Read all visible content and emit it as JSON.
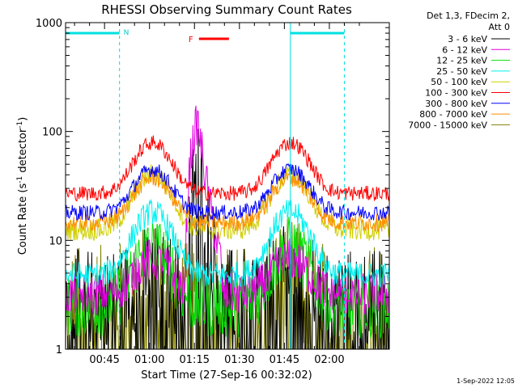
{
  "chart_data": {
    "type": "line",
    "title": "RHESSI Observing Summary Count Rates",
    "xlabel": "Start Time (27-Sep-16 00:32:02)",
    "ylabel_prefix": "Count Rate (s",
    "ylabel_sup1": "-1",
    "ylabel_mid": " detector",
    "ylabel_sup2": "-1",
    "ylabel_suffix": ")",
    "yscale": "log",
    "ylim": [
      1,
      1000
    ],
    "xlim_minutes": [
      32.0,
      140.0
    ],
    "x_ticks": [
      {
        "minute": 45,
        "label": "00:45"
      },
      {
        "minute": 60,
        "label": "01:00"
      },
      {
        "minute": 75,
        "label": "01:15"
      },
      {
        "minute": 90,
        "label": "01:30"
      },
      {
        "minute": 105,
        "label": "01:45"
      },
      {
        "minute": 120,
        "label": "02:00"
      }
    ],
    "y_ticks": [
      {
        "value": 1,
        "label": "1"
      },
      {
        "value": 10,
        "label": "10"
      },
      {
        "value": 100,
        "label": "100"
      },
      {
        "value": 1000,
        "label": "1000"
      }
    ],
    "legend_header": [
      "Det 1,3, FDecim 2,",
      "Att 0"
    ],
    "legend_placement": "right",
    "series": [
      {
        "name": "3 - 6 keV",
        "color": "#000000",
        "base": 3.0,
        "peak": 2.0,
        "noise": 0.45
      },
      {
        "name": "6 - 12 keV",
        "color": "#e000e0",
        "base": 3.2,
        "peak": 3.5,
        "noise": 0.2
      },
      {
        "name": "12 - 25 keV",
        "color": "#00e000",
        "base": 2.5,
        "peak": 6.0,
        "noise": 0.3
      },
      {
        "name": "25 - 50 keV",
        "color": "#00f0f0",
        "base": 4.8,
        "peak": 13.5,
        "noise": 0.12
      },
      {
        "name": "50 - 100 keV",
        "color": "#d0d000",
        "base": 12.5,
        "peak": 28.0,
        "noise": 0.1
      },
      {
        "name": "100 - 300 keV",
        "color": "#ff0000",
        "base": 27.0,
        "peak": 52.0,
        "noise": 0.07
      },
      {
        "name": "300 - 800 keV",
        "color": "#0000ff",
        "base": 18.0,
        "peak": 27.0,
        "noise": 0.07
      },
      {
        "name": "800 - 7000 keV",
        "color": "#ff8c00",
        "base": 14.5,
        "peak": 23.0,
        "noise": 0.08
      },
      {
        "name": "7000 - 15000 keV",
        "color": "#808000",
        "base": 2.3,
        "peak": 1.8,
        "noise": 0.6
      }
    ],
    "flare": {
      "start_minute": 72.0,
      "peak_minute": 76.0,
      "end_minute": 84.0,
      "peak_values": {
        "3 - 6 keV": 55,
        "6 - 12 keV": 125
      }
    },
    "orbit_humps_minute": [
      61.0,
      107.0
    ],
    "annotations": {
      "night_label": "N",
      "flare_label": "F",
      "night_bar_minutes": [
        [
          32.0,
          50.0
        ],
        [
          107.0,
          125.0
        ]
      ],
      "flare_bar_minutes": [
        76.5,
        86.5
      ],
      "saa_lines_minutes": [
        32.0,
        107.0
      ],
      "night_end_dashed_minutes": [
        50.0,
        125.0
      ]
    },
    "footer_date": "1-Sep-2022 12:05"
  }
}
